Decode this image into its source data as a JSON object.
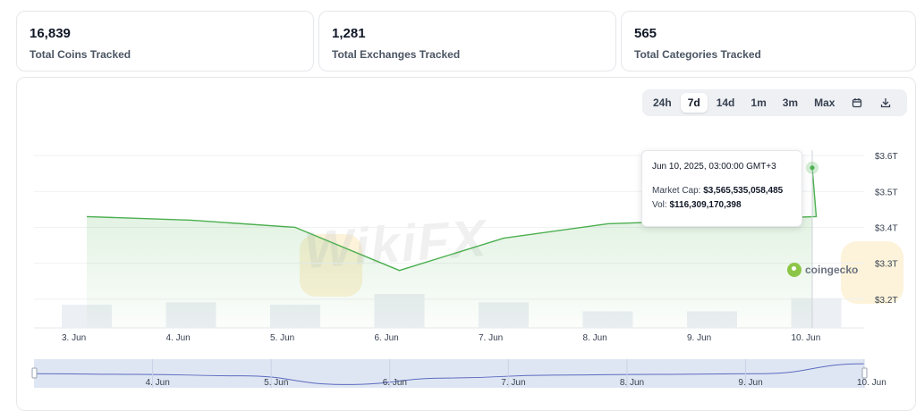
{
  "stats": [
    {
      "value": "16,839",
      "label": "Total Coins Tracked"
    },
    {
      "value": "1,281",
      "label": "Total Exchanges Tracked"
    },
    {
      "value": "565",
      "label": "Total Categories Tracked"
    }
  ],
  "range_options": [
    "24h",
    "7d",
    "14d",
    "1m",
    "3m",
    "Max"
  ],
  "active_range": "7d",
  "icons": {
    "calendar": "calendar-icon",
    "download": "download-icon"
  },
  "tooltip": {
    "date": "Jun 10, 2025, 03:00:00 GMT+3",
    "market_cap_label": "Market Cap:",
    "market_cap_value": "$3,565,535,058,485",
    "vol_label": "Vol:",
    "vol_value": "$116,309,170,398"
  },
  "brand": "coingecko",
  "watermark": "WikiFX",
  "colors": {
    "line": "#4caf50",
    "volume": "#eceff3",
    "navigator": "#dfe6f3",
    "navigator_line": "#5b6bc0"
  },
  "chart_data": {
    "type": "line",
    "title": "",
    "xlabel": "",
    "ylabel": "",
    "x": [
      "3. Jun",
      "4. Jun",
      "5. Jun",
      "6. Jun",
      "7. Jun",
      "8. Jun",
      "9. Jun",
      "10. Jun",
      "10. Jun 03:00"
    ],
    "series": [
      {
        "values": [
          3.43,
          3.42,
          3.4,
          3.28,
          3.37,
          3.41,
          3.42,
          3.43,
          3.566
        ]
      }
    ],
    "volume": [
      0.056,
      0.062,
      0.056,
      0.082,
      0.062,
      0.04,
      0.04,
      0.072,
      0.0
    ],
    "x_tick_labels": [
      "3. Jun",
      "4. Jun",
      "5. Jun",
      "6. Jun",
      "7. Jun",
      "8. Jun",
      "9. Jun",
      "10. Jun"
    ],
    "y_ticks": [
      3.2,
      3.3,
      3.4,
      3.5,
      3.6
    ],
    "y_tick_labels": [
      "$3.2T",
      "$3.3T",
      "$3.4T",
      "$3.5T",
      "$3.6T"
    ],
    "ylim": [
      3.12,
      3.66
    ],
    "y_axis_side": "right",
    "grid": true,
    "navigator_tick_labels": [
      "4. Jun",
      "5. Jun",
      "6. Jun",
      "7. Jun",
      "8. Jun",
      "9. Jun",
      "10. Jun"
    ],
    "navigator_values": [
      3.43,
      3.42,
      3.4,
      3.28,
      3.37,
      3.41,
      3.42,
      3.43,
      3.566
    ]
  }
}
